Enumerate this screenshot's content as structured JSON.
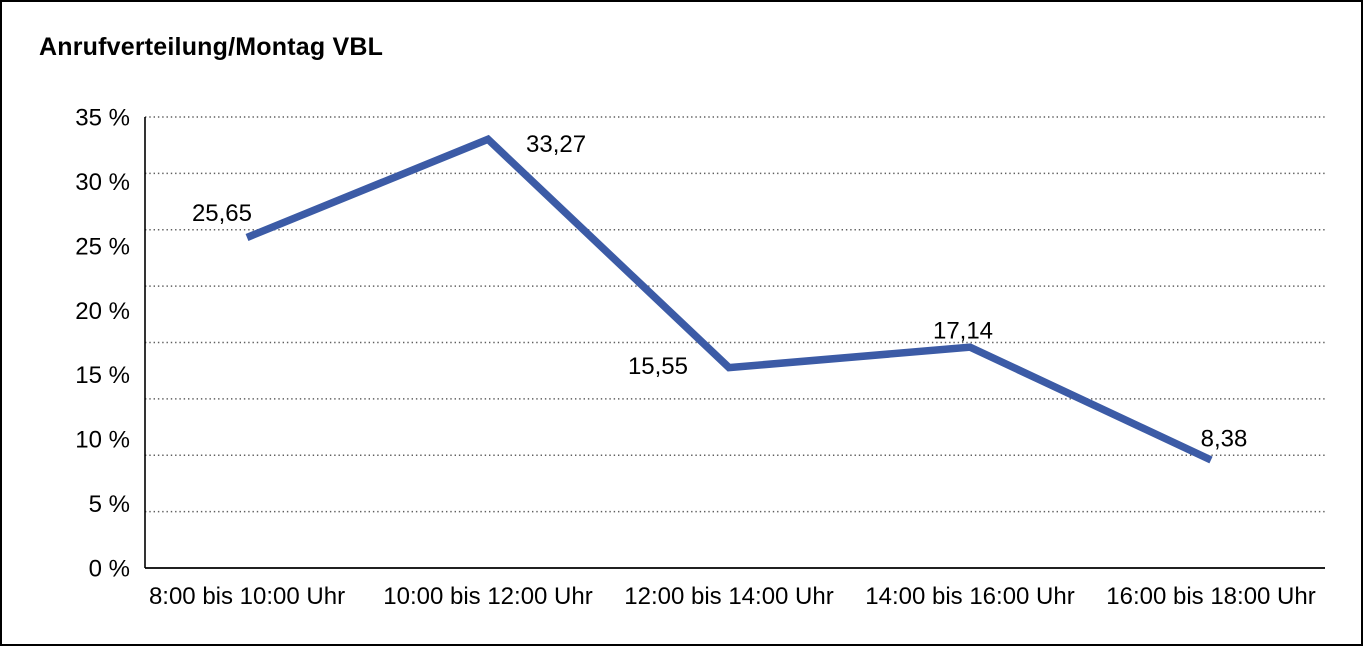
{
  "chart_data": {
    "type": "line",
    "title": "Anrufverteilung/Montag VBL",
    "categories": [
      "8:00 bis 10:00 Uhr",
      "10:00 bis 12:00 Uhr",
      "12:00 bis 14:00 Uhr",
      "14:00 bis 16:00 Uhr",
      "16:00 bis 18:00 Uhr"
    ],
    "values": [
      25.65,
      33.27,
      15.55,
      17.14,
      8.38
    ],
    "point_labels": [
      "25,65",
      "33,27",
      "15,55",
      "17,14",
      "8,38"
    ],
    "y_axis": {
      "tick_labels": [
        "35 %",
        "30 %",
        "25 %",
        "20 %",
        "15 %",
        "10 %",
        "5 %",
        "0 %"
      ],
      "tick_values": [
        35,
        30,
        25,
        20,
        15,
        10,
        5,
        0
      ],
      "ylim": [
        0,
        35
      ]
    },
    "xlabel": "",
    "ylabel": "",
    "legend": "none",
    "grid": "horizontal-dotted",
    "colors": {
      "line": "#3C5BA6",
      "axis": "#000000",
      "gridline": "#5f5f5f",
      "text": "#000000"
    }
  }
}
